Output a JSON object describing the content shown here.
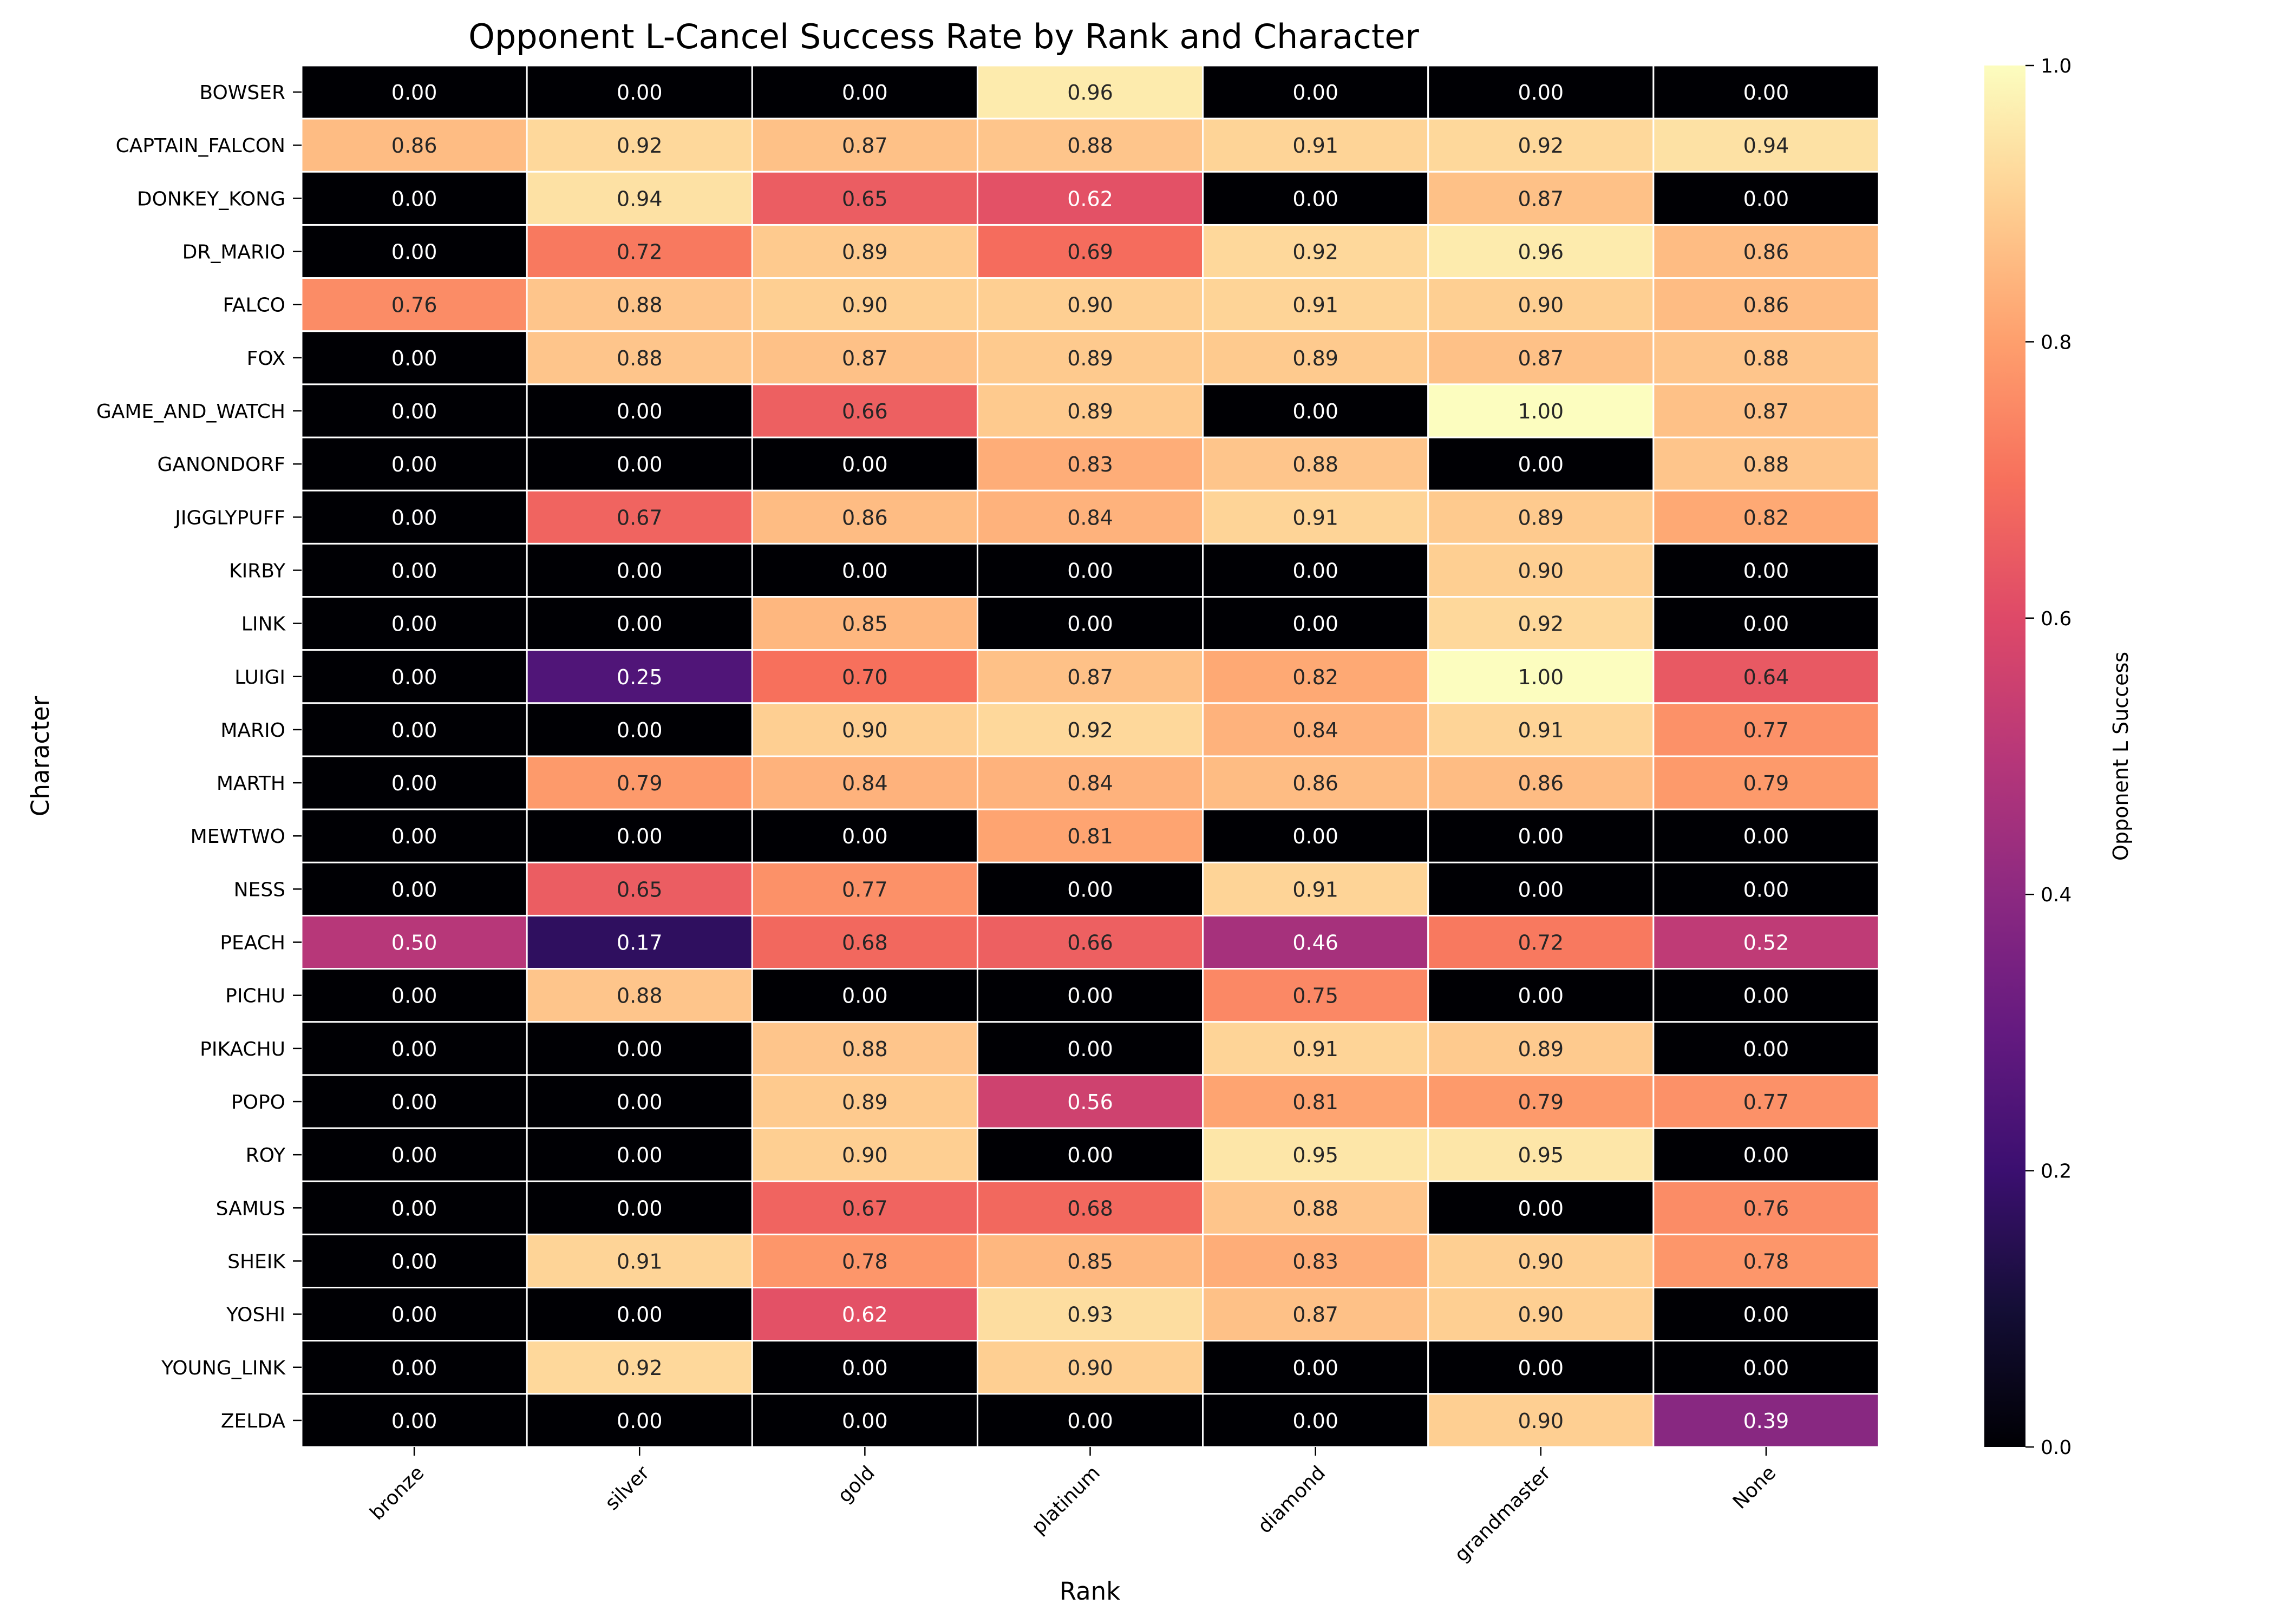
{
  "chart_data": {
    "type": "heatmap",
    "title": "Opponent L-Cancel Success Rate by Rank and Character",
    "xlabel": "Rank",
    "ylabel": "Character",
    "colorbar_label": "Opponent L Success",
    "colormap": "magma",
    "vmin": 0.0,
    "vmax": 1.0,
    "colorbar_ticks": [
      "0.0",
      "0.2",
      "0.4",
      "0.6",
      "0.8",
      "1.0"
    ],
    "x": [
      "bronze",
      "silver",
      "gold",
      "platinum",
      "diamond",
      "grandmaster",
      "None"
    ],
    "y": [
      "BOWSER",
      "CAPTAIN_FALCON",
      "DONKEY_KONG",
      "DR_MARIO",
      "FALCO",
      "FOX",
      "GAME_AND_WATCH",
      "GANONDORF",
      "JIGGLYPUFF",
      "KIRBY",
      "LINK",
      "LUIGI",
      "MARIO",
      "MARTH",
      "MEWTWO",
      "NESS",
      "PEACH",
      "PICHU",
      "PIKACHU",
      "POPO",
      "ROY",
      "SAMUS",
      "SHEIK",
      "YOSHI",
      "YOUNG_LINK",
      "ZELDA"
    ],
    "values": [
      [
        0.0,
        0.0,
        0.0,
        0.96,
        0.0,
        0.0,
        0.0
      ],
      [
        0.86,
        0.92,
        0.87,
        0.88,
        0.91,
        0.92,
        0.94
      ],
      [
        0.0,
        0.94,
        0.65,
        0.62,
        0.0,
        0.87,
        0.0
      ],
      [
        0.0,
        0.72,
        0.89,
        0.69,
        0.92,
        0.96,
        0.86
      ],
      [
        0.76,
        0.88,
        0.9,
        0.9,
        0.91,
        0.9,
        0.86
      ],
      [
        0.0,
        0.88,
        0.87,
        0.89,
        0.89,
        0.87,
        0.88
      ],
      [
        0.0,
        0.0,
        0.66,
        0.89,
        0.0,
        1.0,
        0.87
      ],
      [
        0.0,
        0.0,
        0.0,
        0.83,
        0.88,
        0.0,
        0.88
      ],
      [
        0.0,
        0.67,
        0.86,
        0.84,
        0.91,
        0.89,
        0.82
      ],
      [
        0.0,
        0.0,
        0.0,
        0.0,
        0.0,
        0.9,
        0.0
      ],
      [
        0.0,
        0.0,
        0.85,
        0.0,
        0.0,
        0.92,
        0.0
      ],
      [
        0.0,
        0.25,
        0.7,
        0.87,
        0.82,
        1.0,
        0.64
      ],
      [
        0.0,
        0.0,
        0.9,
        0.92,
        0.84,
        0.91,
        0.77
      ],
      [
        0.0,
        0.79,
        0.84,
        0.84,
        0.86,
        0.86,
        0.79
      ],
      [
        0.0,
        0.0,
        0.0,
        0.81,
        0.0,
        0.0,
        0.0
      ],
      [
        0.0,
        0.65,
        0.77,
        0.0,
        0.91,
        0.0,
        0.0
      ],
      [
        0.5,
        0.17,
        0.68,
        0.66,
        0.46,
        0.72,
        0.52
      ],
      [
        0.0,
        0.88,
        0.0,
        0.0,
        0.75,
        0.0,
        0.0
      ],
      [
        0.0,
        0.0,
        0.88,
        0.0,
        0.91,
        0.89,
        0.0
      ],
      [
        0.0,
        0.0,
        0.89,
        0.56,
        0.81,
        0.79,
        0.77
      ],
      [
        0.0,
        0.0,
        0.9,
        0.0,
        0.95,
        0.95,
        0.0
      ],
      [
        0.0,
        0.0,
        0.67,
        0.68,
        0.88,
        0.0,
        0.76
      ],
      [
        0.0,
        0.91,
        0.78,
        0.85,
        0.83,
        0.9,
        0.78
      ],
      [
        0.0,
        0.0,
        0.62,
        0.93,
        0.87,
        0.9,
        0.0
      ],
      [
        0.0,
        0.92,
        0.0,
        0.9,
        0.0,
        0.0,
        0.0
      ],
      [
        0.0,
        0.0,
        0.0,
        0.0,
        0.0,
        0.9,
        0.39
      ]
    ]
  }
}
